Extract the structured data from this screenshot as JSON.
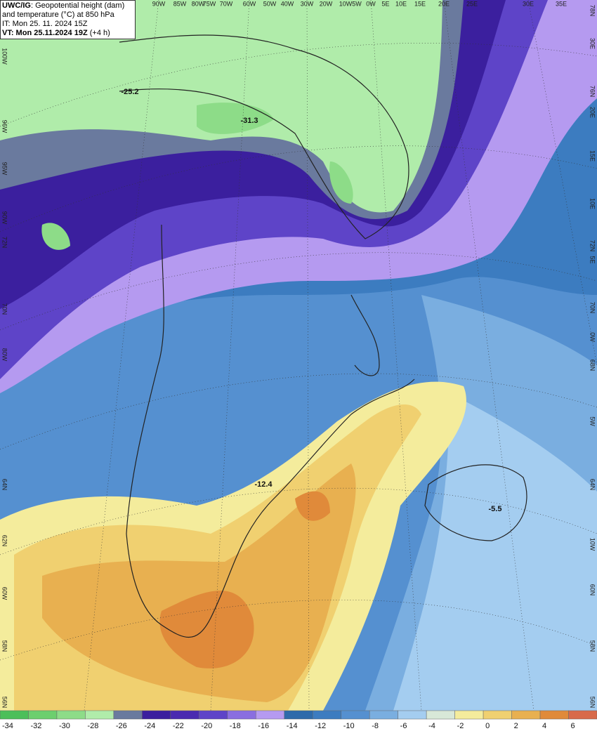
{
  "header": {
    "model": "UWC/IG",
    "line1": ": Geopotential height (dam)",
    "line2": "and temperature (°C) at 850 hPa",
    "init": "IT: Mon 25. 11. 2024 15Z",
    "valid": "VT: Mon 25.11.2024 19Z",
    "lead": " (+4 h)"
  },
  "map": {
    "value_labels": [
      "-25.2",
      "-31.3",
      "-12.4",
      "-5.5"
    ],
    "top_labels": [
      "90W",
      "85W",
      "80W",
      "75W",
      "70W",
      "60W",
      "50W",
      "40W",
      "30W",
      "20W",
      "10W",
      "5W",
      "0W",
      "5E",
      "10E",
      "15E",
      "20E",
      "25E",
      "30E",
      "35E"
    ],
    "right_labels": [
      "78N",
      "30E",
      "76N",
      "20E",
      "15E",
      "10E",
      "72N",
      "5E",
      "70N",
      "0W",
      "68N",
      "5W",
      "64N",
      "10W",
      "60N",
      "58N",
      "56N"
    ],
    "left_labels": [
      "100W",
      "96W",
      "95W",
      "90W",
      "72N",
      "70N",
      "80W",
      "64N",
      "62N",
      "60W",
      "58N",
      "56N"
    ]
  },
  "colorbar": {
    "levels": [
      -34,
      -32,
      -30,
      -28,
      -26,
      -24,
      -22,
      -20,
      -18,
      -16,
      -14,
      -12,
      -10,
      -8,
      -6,
      -4,
      -2,
      0,
      2,
      4,
      6
    ],
    "colors": [
      "#4cbf5a",
      "#6ccf6e",
      "#8ddc88",
      "#b0ecaa",
      "#6a7a9e",
      "#3b1f9e",
      "#4a2ab0",
      "#5e44c8",
      "#8a6ee0",
      "#b59af0",
      "#2e6aaa",
      "#3c7cc0",
      "#5590d0",
      "#7aaee0",
      "#a4cdf0",
      "#d8e8d8",
      "#f4ec9c",
      "#f0d070",
      "#e8b050",
      "#e08a3a",
      "#d86a4a"
    ]
  }
}
